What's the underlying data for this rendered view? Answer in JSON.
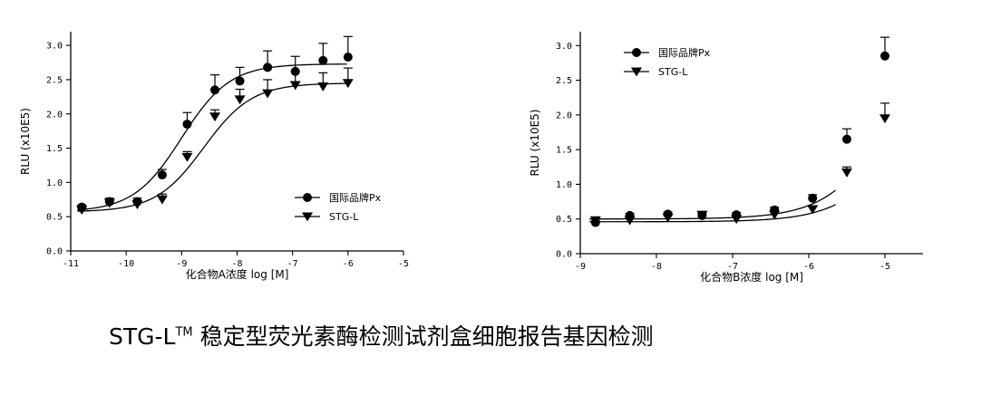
{
  "caption": {
    "prefix": "STG-L",
    "superscript": "TM",
    "suffix": " 稳定型荧光素酶检测试剂盒细胞报告基因检测"
  },
  "chart_data": [
    {
      "type": "scatter",
      "xlabel": "化合物A浓度 log [M]",
      "ylabel": "RLU (x10E5)",
      "xlim": [
        -11,
        -5
      ],
      "ylim": [
        0,
        3.2
      ],
      "xticks": [
        -11,
        -10,
        -9,
        -8,
        -7,
        -6,
        -5
      ],
      "yticks": [
        0.0,
        0.5,
        1.0,
        1.5,
        2.0,
        2.5,
        3.0
      ],
      "xtick_labels": [
        "-11",
        "-10",
        "-9",
        "-8",
        "-7",
        "-6",
        "-5"
      ],
      "ytick_labels": [
        "0.0",
        "0.5",
        "1.0",
        "1.5",
        "2.0",
        "2.5",
        "3.0"
      ],
      "grid": false,
      "legend": "bottom-right",
      "series": [
        {
          "name": "国际品牌Px",
          "marker": "circle",
          "x": [
            -10.8,
            -10.3,
            -9.8,
            -9.35,
            -8.9,
            -8.4,
            -7.95,
            -7.45,
            -6.95,
            -6.45,
            -6.0
          ],
          "y": [
            0.64,
            0.72,
            0.72,
            1.11,
            1.85,
            2.35,
            2.48,
            2.68,
            2.62,
            2.78,
            2.83
          ],
          "err": [
            0.03,
            0.05,
            0.05,
            0.08,
            0.17,
            0.22,
            0.2,
            0.24,
            0.22,
            0.25,
            0.3
          ],
          "curve": {
            "bottom": 0.57,
            "top": 2.73,
            "logec50": -9.0,
            "hill": 1.0
          }
        },
        {
          "name": "STG-L",
          "marker": "triangle-down",
          "x": [
            -10.8,
            -10.3,
            -9.8,
            -9.35,
            -8.9,
            -8.4,
            -7.95,
            -7.45,
            -6.95,
            -6.45,
            -6.0
          ],
          "y": [
            0.6,
            0.7,
            0.68,
            0.75,
            1.37,
            1.96,
            2.21,
            2.3,
            2.42,
            2.4,
            2.45
          ],
          "err": [
            0.03,
            0.04,
            0.04,
            0.08,
            0.08,
            0.1,
            0.15,
            0.2,
            0.2,
            0.2,
            0.22
          ],
          "curve": {
            "bottom": 0.57,
            "top": 2.45,
            "logec50": -8.6,
            "hill": 1.0
          }
        }
      ]
    },
    {
      "type": "scatter",
      "xlabel": "化合物B浓度 log [M]",
      "ylabel": "RLU (x10E5)",
      "xlim": [
        -9,
        -4.5
      ],
      "ylim": [
        0,
        3.2
      ],
      "xticks": [
        -9,
        -8,
        -7,
        -6,
        -5
      ],
      "yticks": [
        0.0,
        0.5,
        1.0,
        1.5,
        2.0,
        2.5,
        3.0
      ],
      "xtick_labels": [
        "-9",
        "-8",
        "-7",
        "-6",
        "-5"
      ],
      "ytick_labels": [
        "0.0",
        "0.5",
        "1.0",
        "1.5",
        "2.0",
        "2.5",
        "3.0"
      ],
      "grid": false,
      "legend": "top-left",
      "series": [
        {
          "name": "国际品牌Px",
          "marker": "circle",
          "x": [
            -8.8,
            -8.35,
            -7.85,
            -7.4,
            -6.95,
            -6.45,
            -5.95,
            -5.5,
            -5.0
          ],
          "y": [
            0.45,
            0.55,
            0.57,
            0.55,
            0.56,
            0.63,
            0.8,
            1.65,
            2.85
          ],
          "err": [
            0.02,
            0.03,
            0.03,
            0.03,
            0.03,
            0.04,
            0.05,
            0.15,
            0.27
          ],
          "curve": {
            "bottom": 0.5,
            "top": 4.6,
            "logec50": -4.7,
            "hill": 1.0
          }
        },
        {
          "name": "STG-L",
          "marker": "triangle-down",
          "x": [
            -8.8,
            -8.35,
            -7.85,
            -7.4,
            -6.95,
            -6.45,
            -5.95,
            -5.5,
            -5.0
          ],
          "y": [
            0.48,
            0.48,
            0.52,
            0.56,
            0.5,
            0.56,
            0.64,
            1.17,
            1.95
          ],
          "err": [
            0.02,
            0.03,
            0.03,
            0.04,
            0.03,
            0.05,
            0.04,
            0.08,
            0.22
          ],
          "curve": {
            "bottom": 0.46,
            "top": 3.8,
            "logec50": -4.55,
            "hill": 1.0
          }
        }
      ]
    }
  ]
}
